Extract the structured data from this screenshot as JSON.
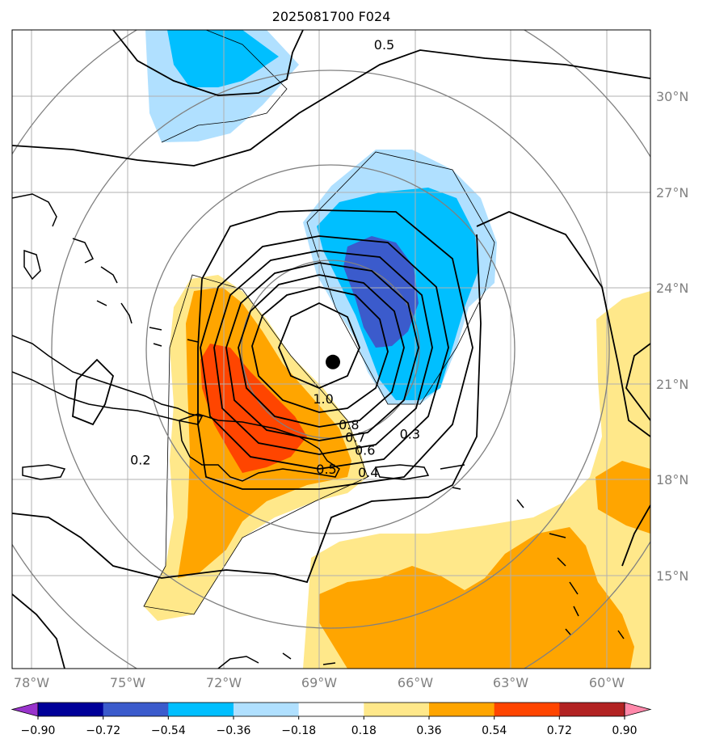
{
  "title": "2025081700 F024",
  "axes": {
    "lon_ticks": [
      "78°W",
      "75°W",
      "72°W",
      "69°W",
      "66°W",
      "63°W",
      "60°W"
    ],
    "lat_ticks": [
      "30°N",
      "27°N",
      "24°N",
      "21°N",
      "18°N",
      "15°N"
    ],
    "lon_range": [
      -78.6,
      -58.7
    ],
    "lat_range": [
      12.5,
      32.5
    ]
  },
  "colorbar": {
    "levels": [
      "−0.90",
      "−0.72",
      "−0.54",
      "−0.36",
      "−0.18",
      "0.18",
      "0.36",
      "0.54",
      "0.72",
      "0.90"
    ],
    "colors": [
      "#9933cc",
      "#000099",
      "#3b5bcc",
      "#00bfff",
      "#b0e0ff",
      "#ffffff",
      "#ffe88a",
      "#ffa500",
      "#ff4500",
      "#b22222",
      "#ff88aa"
    ]
  },
  "storm_center": {
    "lon": -68.6,
    "lat": 22.1
  },
  "contour_labels": [
    {
      "text": "0.5",
      "lon": -67.0,
      "lat": 32.0
    },
    {
      "text": "1.0",
      "lon": -68.9,
      "lat": 20.9
    },
    {
      "text": "0.8",
      "lon": -68.1,
      "lat": 20.1
    },
    {
      "text": "0.7",
      "lon": -67.9,
      "lat": 19.7
    },
    {
      "text": "0.6",
      "lon": -67.6,
      "lat": 19.3
    },
    {
      "text": "0.5",
      "lon": -68.8,
      "lat": 18.7
    },
    {
      "text": "0.4",
      "lon": -67.5,
      "lat": 18.6
    },
    {
      "text": "0.3",
      "lon": -66.2,
      "lat": 19.8
    },
    {
      "text": "0.2",
      "lon": -74.6,
      "lat": 19.0
    }
  ],
  "chart_data": {
    "type": "map",
    "title": "2025081700 F024",
    "fields": [
      "shaded anomaly (colorbar −0.90 to 0.90)",
      "black contours 0.2–1.0"
    ],
    "contour_levels": [
      0.2,
      0.3,
      0.4,
      0.5,
      0.6,
      0.7,
      0.8,
      1.0
    ],
    "color_levels": [
      -0.9,
      -0.72,
      -0.54,
      -0.36,
      -0.18,
      0.18,
      0.36,
      0.54,
      0.72,
      0.9
    ],
    "center": {
      "lon": -68.6,
      "lat": 22.1
    }
  }
}
